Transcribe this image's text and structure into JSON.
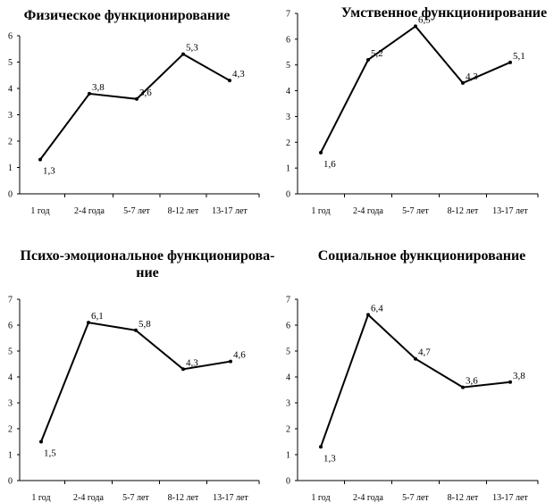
{
  "chart_data": [
    {
      "type": "line",
      "title": [
        "Физическое  функционирование"
      ],
      "categories": [
        "1 год",
        "2-4 года",
        "5-7 лет",
        "8-12 лет",
        "13-17 лет"
      ],
      "values": [
        1.3,
        3.8,
        3.6,
        5.3,
        4.3
      ],
      "data_labels": [
        "1,3",
        "3,8",
        "3,6",
        "5,3",
        "4,3"
      ],
      "ylim": [
        0,
        6
      ],
      "yticks": [
        0,
        1,
        2,
        3,
        4,
        5,
        6
      ],
      "xlabel": "",
      "ylabel": "",
      "grid": false,
      "line_color": "#000000"
    },
    {
      "type": "line",
      "title": [
        "Умственное функционирование"
      ],
      "categories": [
        "1 год",
        "2-4 года",
        "5-7 лет",
        "8-12 лет",
        "13-17 лет"
      ],
      "values": [
        1.6,
        5.2,
        6.5,
        4.3,
        5.1
      ],
      "data_labels": [
        "1,6",
        "5,2",
        "6,5",
        "4,3",
        "5,1"
      ],
      "ylim": [
        0,
        7
      ],
      "yticks": [
        0,
        1,
        2,
        3,
        4,
        5,
        6,
        7
      ],
      "xlabel": "",
      "ylabel": "",
      "grid": false,
      "line_color": "#000000"
    },
    {
      "type": "line",
      "title": [
        "Психо-эмоциональное  функционирова-",
        "ние"
      ],
      "categories": [
        "1 год",
        "2-4 года",
        "5-7 лет",
        "8-12 лет",
        "13-17 лет"
      ],
      "values": [
        1.5,
        6.1,
        5.8,
        4.3,
        4.6
      ],
      "data_labels": [
        "1,5",
        "6,1",
        "5,8",
        "4,3",
        "4,6"
      ],
      "ylim": [
        0,
        7
      ],
      "yticks": [
        0,
        1,
        2,
        3,
        4,
        5,
        6,
        7
      ],
      "xlabel": "",
      "ylabel": "",
      "grid": false,
      "line_color": "#000000"
    },
    {
      "type": "line",
      "title": [
        "Социальное  функционирование"
      ],
      "categories": [
        "1 год",
        "2-4 года",
        "5-7 лет",
        "8-12 лет",
        "13-17 лет"
      ],
      "values": [
        1.3,
        6.4,
        4.7,
        3.6,
        3.8
      ],
      "data_labels": [
        "1,3",
        "6,4",
        "4,7",
        "3,6",
        "3,8"
      ],
      "ylim": [
        0,
        7
      ],
      "yticks": [
        0,
        1,
        2,
        3,
        4,
        5,
        6,
        7
      ],
      "xlabel": "",
      "ylabel": "",
      "grid": false,
      "line_color": "#000000"
    }
  ]
}
